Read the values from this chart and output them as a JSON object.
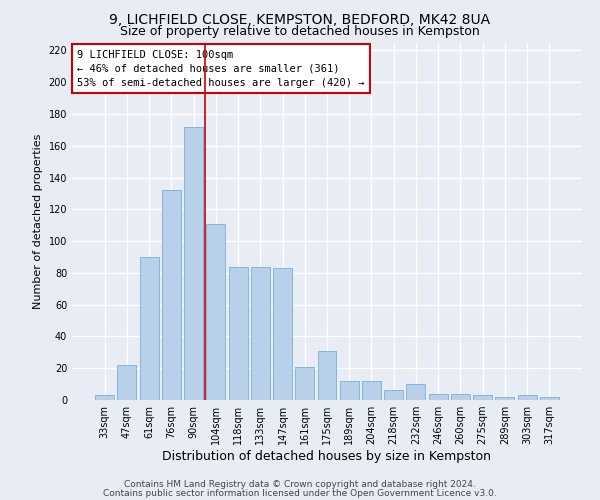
{
  "title_line1": "9, LICHFIELD CLOSE, KEMPSTON, BEDFORD, MK42 8UA",
  "title_line2": "Size of property relative to detached houses in Kempston",
  "xlabel": "Distribution of detached houses by size in Kempston",
  "ylabel": "Number of detached properties",
  "categories": [
    "33sqm",
    "47sqm",
    "61sqm",
    "76sqm",
    "90sqm",
    "104sqm",
    "118sqm",
    "133sqm",
    "147sqm",
    "161sqm",
    "175sqm",
    "189sqm",
    "204sqm",
    "218sqm",
    "232sqm",
    "246sqm",
    "260sqm",
    "275sqm",
    "289sqm",
    "303sqm",
    "317sqm"
  ],
  "values": [
    3,
    22,
    90,
    132,
    172,
    111,
    84,
    84,
    83,
    21,
    31,
    12,
    12,
    6,
    10,
    4,
    4,
    3,
    2,
    3,
    2
  ],
  "bar_color": "#b8d0ea",
  "bar_edge_color": "#7aafd4",
  "vline_x": 4.5,
  "vline_color": "#cc0000",
  "annotation_text": "9 LICHFIELD CLOSE: 100sqm\n← 46% of detached houses are smaller (361)\n53% of semi-detached houses are larger (420) →",
  "annotation_box_color": "#ffffff",
  "annotation_box_edge_color": "#cc0000",
  "ylim": [
    0,
    225
  ],
  "yticks": [
    0,
    20,
    40,
    60,
    80,
    100,
    120,
    140,
    160,
    180,
    200,
    220
  ],
  "footer_line1": "Contains HM Land Registry data © Crown copyright and database right 2024.",
  "footer_line2": "Contains public sector information licensed under the Open Government Licence v3.0.",
  "background_color": "#e8edf5",
  "plot_background_color": "#e8edf5",
  "grid_color": "#ffffff",
  "title1_fontsize": 10,
  "title2_fontsize": 9,
  "xlabel_fontsize": 9,
  "ylabel_fontsize": 8,
  "tick_fontsize": 7,
  "annot_fontsize": 7.5,
  "footer_fontsize": 6.5
}
